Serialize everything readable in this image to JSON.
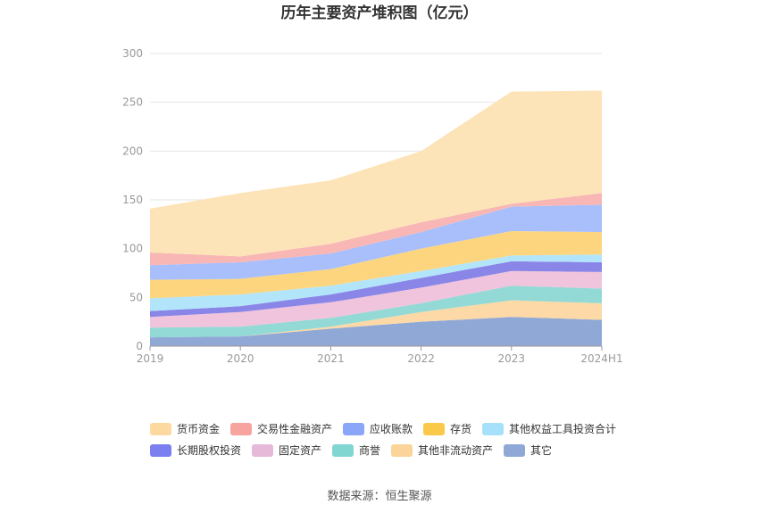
{
  "chart_data": {
    "type": "area",
    "stacked": true,
    "title": "历年主要资产堆积图（亿元）",
    "source": "数据来源：恒生聚源",
    "categories": [
      "2019",
      "2020",
      "2021",
      "2022",
      "2023",
      "2024H1"
    ],
    "ylim": [
      0,
      300
    ],
    "yticks": [
      0,
      50,
      100,
      150,
      200,
      250,
      300
    ],
    "grid": true,
    "legend_position": "bottom",
    "series": [
      {
        "name": "其它",
        "color": "#8fa8d6",
        "values": [
          9,
          10,
          18,
          25,
          30,
          27
        ]
      },
      {
        "name": "其他非流动资产",
        "color": "#fcd9a6",
        "values": [
          0,
          0,
          2,
          10,
          17,
          17
        ]
      },
      {
        "name": "商誉",
        "color": "#93d9d6",
        "values": [
          10,
          10,
          9,
          9,
          15,
          15
        ]
      },
      {
        "name": "固定资产",
        "color": "#f0c4dc",
        "values": [
          11,
          15,
          16,
          16,
          15,
          17
        ]
      },
      {
        "name": "长期股权投资",
        "color": "#8a86e8",
        "values": [
          6,
          6,
          8,
          10,
          10,
          10
        ]
      },
      {
        "name": "其他权益工具投资合计",
        "color": "#b3e5fa",
        "values": [
          13,
          12,
          9,
          7,
          6,
          8
        ]
      },
      {
        "name": "存货",
        "color": "#fdd57e",
        "values": [
          19,
          16,
          17,
          23,
          25,
          23
        ]
      },
      {
        "name": "应收账款",
        "color": "#a8bffb",
        "values": [
          15,
          17,
          16,
          17,
          25,
          28
        ]
      },
      {
        "name": "交易性金融资产",
        "color": "#f8b7b4",
        "values": [
          13,
          6,
          10,
          10,
          3,
          12
        ]
      },
      {
        "name": "货币资金",
        "color": "#fde4b8",
        "values": [
          45,
          65,
          65,
          73,
          115,
          105
        ]
      }
    ],
    "legend_order": [
      "货币资金",
      "交易性金融资产",
      "应收账款",
      "存货",
      "其他权益工具投资合计",
      "长期股权投资",
      "固定资产",
      "商誉",
      "其他非流动资产",
      "其它"
    ],
    "legend_colors": {
      "货币资金": "#fdd9a0",
      "交易性金融资产": "#f7a39e",
      "应收账款": "#8aa6f8",
      "存货": "#fbc94a",
      "其他权益工具投资合计": "#a6e0fb",
      "长期股权投资": "#7b7ff0",
      "固定资产": "#e6b9d9",
      "商誉": "#82d6d2",
      "其他非流动资产": "#fbd49a",
      "其它": "#8fa8d6"
    }
  }
}
